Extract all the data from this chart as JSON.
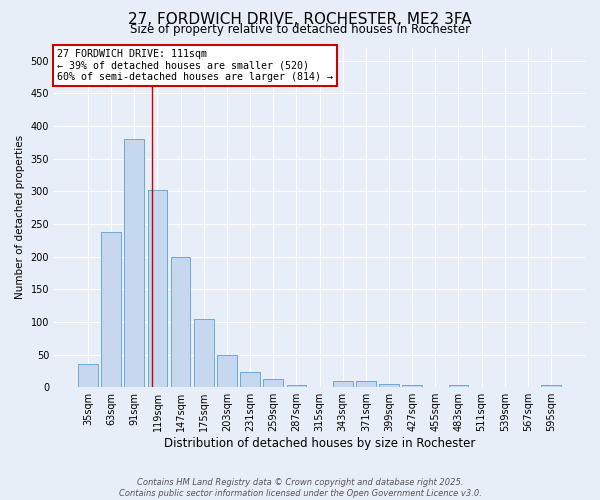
{
  "title": "27, FORDWICH DRIVE, ROCHESTER, ME2 3FA",
  "subtitle": "Size of property relative to detached houses in Rochester",
  "xlabel": "Distribution of detached houses by size in Rochester",
  "ylabel": "Number of detached properties",
  "categories": [
    "35sqm",
    "63sqm",
    "91sqm",
    "119sqm",
    "147sqm",
    "175sqm",
    "203sqm",
    "231sqm",
    "259sqm",
    "287sqm",
    "315sqm",
    "343sqm",
    "371sqm",
    "399sqm",
    "427sqm",
    "455sqm",
    "483sqm",
    "511sqm",
    "539sqm",
    "567sqm",
    "595sqm"
  ],
  "values": [
    35,
    237,
    380,
    302,
    200,
    105,
    50,
    23,
    13,
    3,
    0,
    10,
    10,
    5,
    3,
    0,
    3,
    0,
    0,
    0,
    3
  ],
  "bar_color": "#c5d8f0",
  "bar_edge_color": "#6aaad4",
  "background_color": "#e8eef8",
  "grid_color": "#ffffff",
  "red_line_x": 2.78,
  "annotation_text": "27 FORDWICH DRIVE: 111sqm\n← 39% of detached houses are smaller (520)\n60% of semi-detached houses are larger (814) →",
  "annotation_box_color": "#ffffff",
  "annotation_box_edge": "#cc0000",
  "footer_line1": "Contains HM Land Registry data © Crown copyright and database right 2025.",
  "footer_line2": "Contains public sector information licensed under the Open Government Licence v3.0.",
  "ylim": [
    0,
    520
  ],
  "yticks": [
    0,
    50,
    100,
    150,
    200,
    250,
    300,
    350,
    400,
    450,
    500
  ]
}
